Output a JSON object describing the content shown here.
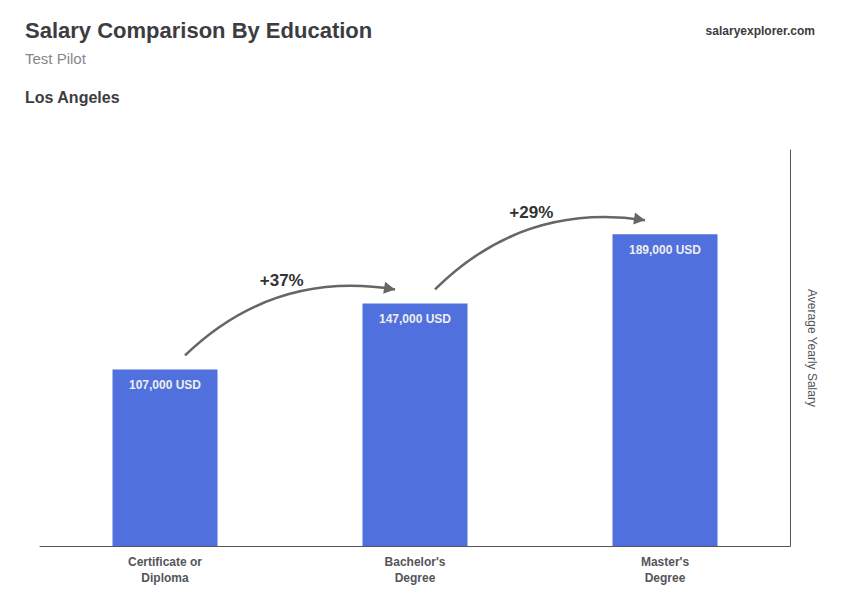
{
  "chart_data": {
    "type": "bar",
    "title": "Salary Comparison By Education",
    "subtitle": "Test Pilot",
    "location": "Los Angeles",
    "brand": [
      "salary",
      "explorer",
      ".com"
    ],
    "categories": [
      "Certificate or\nDiploma",
      "Bachelor's\nDegree",
      "Master's\nDegree"
    ],
    "values": [
      107000,
      147000,
      189000
    ],
    "value_labels": [
      "107,000 USD",
      "147,000 USD",
      "189,000 USD"
    ],
    "data_labels": true,
    "pct_labels": [
      "+37%",
      "+29%"
    ],
    "ylabel": "Average Yearly Salary",
    "ylim": [
      0,
      240000
    ],
    "tick_labels": "x",
    "grid": false
  }
}
